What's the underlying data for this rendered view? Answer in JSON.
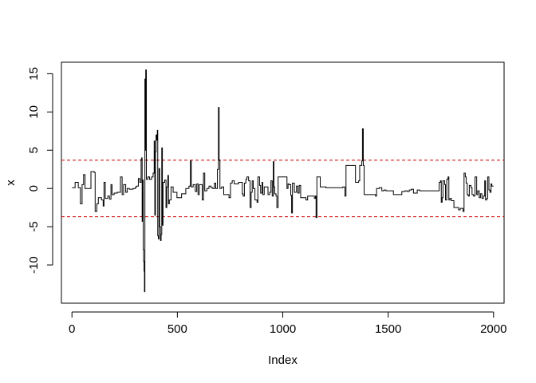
{
  "chart_data": {
    "type": "line",
    "subtype": "step",
    "xlabel": "Index",
    "ylabel": "x",
    "xlim": [
      -50,
      2050
    ],
    "ylim": [
      -15,
      16.5
    ],
    "xticks": [
      0,
      500,
      1000,
      1500,
      2000
    ],
    "yticks": [
      -10,
      -5,
      0,
      5,
      10,
      15
    ],
    "xtick_labels": [
      "0",
      "500",
      "1000",
      "1500",
      "2000"
    ],
    "ytick_labels": [
      "-10",
      "-5",
      "0",
      "5",
      "10",
      "15"
    ],
    "grid": false,
    "colors": {
      "series": "#000000",
      "threshold": "#cc0000"
    },
    "reference_lines": [
      {
        "y": 3.7,
        "style": "dashed",
        "color": "#cc0000"
      },
      {
        "y": -3.7,
        "style": "dashed",
        "color": "#cc0000"
      }
    ],
    "series": [
      {
        "points": [
          [
            0,
            0.1
          ],
          [
            15,
            0.8
          ],
          [
            30,
            0.1
          ],
          [
            40,
            -2.0
          ],
          [
            48,
            0.5
          ],
          [
            55,
            1.8
          ],
          [
            62,
            0.0
          ],
          [
            85,
            0.0
          ],
          [
            90,
            2.2
          ],
          [
            105,
            2.1
          ],
          [
            110,
            -3.0
          ],
          [
            118,
            -2.0
          ],
          [
            125,
            -1.2
          ],
          [
            140,
            -1.5
          ],
          [
            148,
            -2.3
          ],
          [
            152,
            0.8
          ],
          [
            158,
            -1.3
          ],
          [
            170,
            -1.0
          ],
          [
            178,
            -1.4
          ],
          [
            185,
            0.5
          ],
          [
            190,
            -0.8
          ],
          [
            200,
            -0.6
          ],
          [
            215,
            -0.5
          ],
          [
            230,
            1.5
          ],
          [
            238,
            -0.8
          ],
          [
            245,
            0.5
          ],
          [
            255,
            -0.5
          ],
          [
            262,
            0.0
          ],
          [
            272,
            -0.1
          ],
          [
            290,
            0.0
          ],
          [
            300,
            0.1
          ],
          [
            305,
            0.3
          ],
          [
            315,
            1.3
          ],
          [
            322,
            0.8
          ],
          [
            328,
            3.8
          ],
          [
            331,
            4.0
          ],
          [
            333,
            -4.3
          ],
          [
            336,
            1.1
          ],
          [
            338,
            -8.0
          ],
          [
            340,
            -9.5
          ],
          [
            342,
            -10.8
          ],
          [
            344,
            -13.5
          ],
          [
            346,
            14.3
          ],
          [
            348,
            5.0
          ],
          [
            350,
            15.5
          ],
          [
            353,
            1.2
          ],
          [
            360,
            1.5
          ],
          [
            368,
            1.2
          ],
          [
            378,
            1.5
          ],
          [
            385,
            2.0
          ],
          [
            390,
            6.2
          ],
          [
            393,
            -3.5
          ],
          [
            396,
            4.8
          ],
          [
            399,
            7.0
          ],
          [
            402,
            6.3
          ],
          [
            405,
            7.6
          ],
          [
            407,
            -6.2
          ],
          [
            410,
            -6.6
          ],
          [
            413,
            2.6
          ],
          [
            416,
            -5.0
          ],
          [
            420,
            -6.8
          ],
          [
            423,
            -6.0
          ],
          [
            426,
            5.3
          ],
          [
            429,
            -4.8
          ],
          [
            432,
            0.8
          ],
          [
            440,
            1.1
          ],
          [
            446,
            -2.5
          ],
          [
            450,
            0.2
          ],
          [
            455,
            1.7
          ],
          [
            458,
            -2.0
          ],
          [
            462,
            -1.5
          ],
          [
            470,
            0.2
          ],
          [
            480,
            -0.5
          ],
          [
            498,
            -1.2
          ],
          [
            520,
            -0.7
          ],
          [
            535,
            -0.7
          ],
          [
            540,
            0.0
          ],
          [
            555,
            0.3
          ],
          [
            562,
            3.6
          ],
          [
            566,
            0.2
          ],
          [
            575,
            0.5
          ],
          [
            585,
            -0.4
          ],
          [
            592,
            0.6
          ],
          [
            598,
            -0.8
          ],
          [
            604,
            0.5
          ],
          [
            612,
            0.5
          ],
          [
            618,
            -1.5
          ],
          [
            624,
            2.0
          ],
          [
            630,
            -0.3
          ],
          [
            640,
            0.0
          ],
          [
            650,
            0.3
          ],
          [
            660,
            0.1
          ],
          [
            668,
            0.0
          ],
          [
            676,
            0.7
          ],
          [
            682,
            0.0
          ],
          [
            690,
            2.5
          ],
          [
            695,
            10.6
          ],
          [
            698,
            3.7
          ],
          [
            702,
            0.0
          ],
          [
            710,
            0.2
          ],
          [
            720,
            -0.8
          ],
          [
            745,
            -1.2
          ],
          [
            752,
            0.7
          ],
          [
            760,
            1.0
          ],
          [
            770,
            0.6
          ],
          [
            790,
            0.8
          ],
          [
            800,
            0.8
          ],
          [
            808,
            -0.7
          ],
          [
            812,
            -1.0
          ],
          [
            818,
            0.7
          ],
          [
            825,
            1.2
          ],
          [
            830,
            1.5
          ],
          [
            838,
            1.0
          ],
          [
            845,
            -2.5
          ],
          [
            850,
            -0.5
          ],
          [
            855,
            1.0
          ],
          [
            860,
            0.0
          ],
          [
            868,
            -1.5
          ],
          [
            872,
            -1.5
          ],
          [
            878,
            -1.8
          ],
          [
            882,
            1.5
          ],
          [
            890,
            0.4
          ],
          [
            895,
            -0.6
          ],
          [
            902,
            0.8
          ],
          [
            905,
            -0.8
          ],
          [
            912,
            0.2
          ],
          [
            925,
            0.2
          ],
          [
            930,
            -0.8
          ],
          [
            938,
            -0.5
          ],
          [
            944,
            1.0
          ],
          [
            950,
            -1.0
          ],
          [
            955,
            3.5
          ],
          [
            958,
            0.2
          ],
          [
            962,
            -0.7
          ],
          [
            968,
            -1.0
          ],
          [
            972,
            -2.5
          ],
          [
            978,
            1.5
          ],
          [
            1015,
            1.5
          ],
          [
            1020,
            0.0
          ],
          [
            1025,
            0.6
          ],
          [
            1030,
            0.5
          ],
          [
            1038,
            -0.9
          ],
          [
            1042,
            -3.2
          ],
          [
            1046,
            0.7
          ],
          [
            1055,
            -0.5
          ],
          [
            1065,
            0.3
          ],
          [
            1072,
            -0.6
          ],
          [
            1078,
            0.4
          ],
          [
            1085,
            -1.2
          ],
          [
            1100,
            -1.2
          ],
          [
            1110,
            -1.5
          ],
          [
            1118,
            -1.0
          ],
          [
            1135,
            -1.0
          ],
          [
            1150,
            -1.3
          ],
          [
            1155,
            -1.0
          ],
          [
            1158,
            -3.8
          ],
          [
            1162,
            1.5
          ],
          [
            1170,
            1.5
          ],
          [
            1178,
            0.2
          ],
          [
            1195,
            0.2
          ],
          [
            1205,
            0.1
          ],
          [
            1250,
            0.1
          ],
          [
            1285,
            0.2
          ],
          [
            1295,
            -1.0
          ],
          [
            1300,
            3.0
          ],
          [
            1325,
            3.0
          ],
          [
            1345,
            0.8
          ],
          [
            1360,
            1.0
          ],
          [
            1365,
            3.0
          ],
          [
            1375,
            3.6
          ],
          [
            1378,
            7.8
          ],
          [
            1382,
            3.0
          ],
          [
            1386,
            -0.8
          ],
          [
            1420,
            -0.8
          ],
          [
            1440,
            -1.0
          ],
          [
            1445,
            0.0
          ],
          [
            1458,
            0.1
          ],
          [
            1470,
            -0.3
          ],
          [
            1480,
            -0.2
          ],
          [
            1490,
            -0.3
          ],
          [
            1510,
            -0.3
          ],
          [
            1525,
            -0.8
          ],
          [
            1560,
            -0.8
          ],
          [
            1565,
            -0.4
          ],
          [
            1580,
            -0.3
          ],
          [
            1590,
            -0.4
          ],
          [
            1600,
            -0.2
          ],
          [
            1610,
            -0.1
          ],
          [
            1620,
            -0.6
          ],
          [
            1630,
            -0.6
          ],
          [
            1638,
            -0.2
          ],
          [
            1650,
            -0.3
          ],
          [
            1730,
            -0.3
          ],
          [
            1742,
            0.8
          ],
          [
            1748,
            1.0
          ],
          [
            1752,
            -1.8
          ],
          [
            1756,
            -1.2
          ],
          [
            1760,
            1.0
          ],
          [
            1768,
            0.5
          ],
          [
            1772,
            -1.5
          ],
          [
            1778,
            1.2
          ],
          [
            1784,
            1.5
          ],
          [
            1788,
            -1.5
          ],
          [
            1793,
            -1.3
          ],
          [
            1800,
            -1.6
          ],
          [
            1812,
            -2.5
          ],
          [
            1826,
            -2.5
          ],
          [
            1834,
            -2.8
          ],
          [
            1842,
            -2.6
          ],
          [
            1855,
            -3.0
          ],
          [
            1860,
            2.0
          ],
          [
            1866,
            1.5
          ],
          [
            1870,
            0.7
          ],
          [
            1875,
            -0.8
          ],
          [
            1880,
            -1.0
          ],
          [
            1885,
            0.4
          ],
          [
            1893,
            0.1
          ],
          [
            1898,
            -0.8
          ],
          [
            1905,
            -1.0
          ],
          [
            1912,
            1.5
          ],
          [
            1920,
            -0.8
          ],
          [
            1925,
            -0.3
          ],
          [
            1932,
            -1.2
          ],
          [
            1938,
            -0.7
          ],
          [
            1945,
            -1.3
          ],
          [
            1952,
            -1.0
          ],
          [
            1958,
            1.0
          ],
          [
            1962,
            -1.5
          ],
          [
            1968,
            -1.3
          ],
          [
            1972,
            1.5
          ],
          [
            1978,
            -0.2
          ],
          [
            1983,
            -0.5
          ],
          [
            1988,
            0.6
          ],
          [
            1992,
            0.3
          ],
          [
            2000,
            0.3
          ]
        ]
      }
    ]
  }
}
